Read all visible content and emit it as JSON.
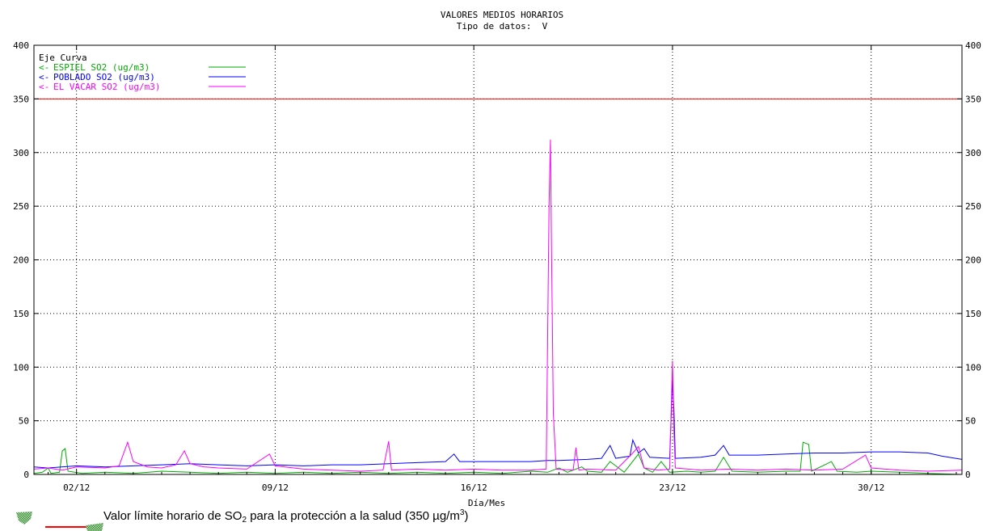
{
  "chart_data": {
    "type": "line",
    "title": "VALORES MEDIOS HORARIOS",
    "subtitle": "Tipo de datos:  V",
    "xlabel": "Día/Mes",
    "ylabel": "",
    "x_range_days": [
      0.5,
      33.2
    ],
    "ylim": [
      0,
      400
    ],
    "yticks": [
      0,
      50,
      100,
      150,
      200,
      250,
      300,
      350,
      400
    ],
    "xticks": [
      {
        "day": 2,
        "label": "02/12"
      },
      {
        "day": 9,
        "label": "09/12"
      },
      {
        "day": 16,
        "label": "16/12"
      },
      {
        "day": 23,
        "label": "23/12"
      },
      {
        "day": 30,
        "label": "30/12"
      }
    ],
    "grid": true,
    "legend_position": "top-left",
    "legend_header": "Eje Curva",
    "limit_line": {
      "value": 350,
      "color": "#ff0000"
    },
    "series": [
      {
        "name": "ESPIEL SO2  (ug/m3)",
        "axis": "<-",
        "color": "#00aa00",
        "points": [
          [
            0.5,
            1
          ],
          [
            0.8,
            2
          ],
          [
            1.0,
            6
          ],
          [
            1.1,
            1
          ],
          [
            1.4,
            2
          ],
          [
            1.5,
            22
          ],
          [
            1.6,
            24
          ],
          [
            1.7,
            3
          ],
          [
            2.2,
            1
          ],
          [
            3.0,
            2
          ],
          [
            4.0,
            1
          ],
          [
            5.0,
            3
          ],
          [
            6.0,
            2
          ],
          [
            7.0,
            1
          ],
          [
            8.0,
            2
          ],
          [
            9.0,
            1
          ],
          [
            10.0,
            2
          ],
          [
            11.0,
            1
          ],
          [
            12.0,
            2
          ],
          [
            13.0,
            1
          ],
          [
            14.0,
            2
          ],
          [
            15.0,
            1
          ],
          [
            16.0,
            2
          ],
          [
            17.0,
            1
          ],
          [
            18.0,
            3
          ],
          [
            18.6,
            2
          ],
          [
            19.0,
            6
          ],
          [
            19.3,
            2
          ],
          [
            19.8,
            7
          ],
          [
            20.0,
            3
          ],
          [
            20.5,
            2
          ],
          [
            20.8,
            12
          ],
          [
            21.0,
            8
          ],
          [
            21.3,
            2
          ],
          [
            21.8,
            19
          ],
          [
            22.0,
            6
          ],
          [
            22.3,
            2
          ],
          [
            22.6,
            12
          ],
          [
            22.9,
            2
          ],
          [
            23.5,
            3
          ],
          [
            24.0,
            2
          ],
          [
            24.5,
            3
          ],
          [
            24.8,
            16
          ],
          [
            25.1,
            3
          ],
          [
            26.0,
            2
          ],
          [
            27.0,
            3
          ],
          [
            27.5,
            3
          ],
          [
            27.6,
            30
          ],
          [
            27.8,
            28
          ],
          [
            27.9,
            3
          ],
          [
            28.6,
            12
          ],
          [
            28.8,
            3
          ],
          [
            29.5,
            2
          ],
          [
            30.0,
            3
          ],
          [
            31.0,
            2
          ],
          [
            32.0,
            1
          ],
          [
            33.2,
            0
          ]
        ]
      },
      {
        "name": "POBLADO SO2  (ug/m3)",
        "axis": "<-",
        "color": "#0000ff",
        "points": [
          [
            0.5,
            7
          ],
          [
            1.0,
            6
          ],
          [
            2.0,
            8
          ],
          [
            3.0,
            7
          ],
          [
            4.0,
            8
          ],
          [
            5.0,
            9
          ],
          [
            6.0,
            10
          ],
          [
            7.0,
            9
          ],
          [
            8.0,
            8
          ],
          [
            9.0,
            9
          ],
          [
            10.0,
            8
          ],
          [
            11.0,
            9
          ],
          [
            12.0,
            9
          ],
          [
            13.0,
            10
          ],
          [
            14.0,
            11
          ],
          [
            15.0,
            12
          ],
          [
            15.3,
            19
          ],
          [
            15.5,
            12
          ],
          [
            16.0,
            12
          ],
          [
            17.0,
            12
          ],
          [
            18.0,
            12
          ],
          [
            18.6,
            13
          ],
          [
            19.0,
            13
          ],
          [
            20.0,
            14
          ],
          [
            20.5,
            15
          ],
          [
            20.8,
            27
          ],
          [
            21.0,
            15
          ],
          [
            21.5,
            17
          ],
          [
            21.6,
            32
          ],
          [
            21.8,
            20
          ],
          [
            22.0,
            24
          ],
          [
            22.2,
            16
          ],
          [
            22.9,
            15
          ],
          [
            23.0,
            88
          ],
          [
            23.05,
            60
          ],
          [
            23.1,
            15
          ],
          [
            24.0,
            16
          ],
          [
            24.5,
            18
          ],
          [
            24.8,
            27
          ],
          [
            25.0,
            18
          ],
          [
            26.0,
            18
          ],
          [
            27.0,
            19
          ],
          [
            28.0,
            20
          ],
          [
            29.0,
            20
          ],
          [
            30.0,
            21
          ],
          [
            31.0,
            21
          ],
          [
            32.0,
            20
          ],
          [
            32.5,
            17
          ],
          [
            33.2,
            14
          ]
        ]
      },
      {
        "name": "EL VACAR SO2  (ug/m3)",
        "axis": "<-",
        "color": "#ff00ff",
        "points": [
          [
            0.5,
            5
          ],
          [
            1.0,
            6
          ],
          [
            1.5,
            4
          ],
          [
            2.0,
            7
          ],
          [
            3.0,
            6
          ],
          [
            3.5,
            8
          ],
          [
            3.8,
            30
          ],
          [
            4.0,
            12
          ],
          [
            4.5,
            7
          ],
          [
            5.0,
            6
          ],
          [
            5.5,
            9
          ],
          [
            5.8,
            22
          ],
          [
            6.0,
            10
          ],
          [
            6.5,
            7
          ],
          [
            7.0,
            6
          ],
          [
            8.0,
            5
          ],
          [
            8.8,
            19
          ],
          [
            9.0,
            8
          ],
          [
            10.0,
            5
          ],
          [
            11.0,
            4
          ],
          [
            12.0,
            3
          ],
          [
            12.8,
            4
          ],
          [
            13.0,
            31
          ],
          [
            13.1,
            4
          ],
          [
            14.0,
            5
          ],
          [
            15.0,
            4
          ],
          [
            16.0,
            5
          ],
          [
            17.0,
            4
          ],
          [
            18.0,
            4
          ],
          [
            18.55,
            5
          ],
          [
            18.65,
            250
          ],
          [
            18.7,
            312
          ],
          [
            18.75,
            180
          ],
          [
            18.8,
            57
          ],
          [
            18.9,
            5
          ],
          [
            19.5,
            4
          ],
          [
            19.6,
            25
          ],
          [
            19.7,
            4
          ],
          [
            20.0,
            5
          ],
          [
            21.0,
            4
          ],
          [
            21.6,
            20
          ],
          [
            21.8,
            26
          ],
          [
            22.0,
            6
          ],
          [
            22.5,
            4
          ],
          [
            22.9,
            5
          ],
          [
            23.0,
            106
          ],
          [
            23.05,
            40
          ],
          [
            23.1,
            6
          ],
          [
            24.0,
            4
          ],
          [
            25.0,
            5
          ],
          [
            26.0,
            4
          ],
          [
            27.0,
            5
          ],
          [
            28.0,
            4
          ],
          [
            29.0,
            5
          ],
          [
            29.8,
            18
          ],
          [
            30.0,
            6
          ],
          [
            31.0,
            4
          ],
          [
            32.0,
            3
          ],
          [
            33.2,
            4
          ]
        ]
      }
    ]
  },
  "footer": {
    "note_main": "Valor límite horario de SO",
    "note_sub": "2",
    "note_mid": " para la protección a la salud (350 µg/m",
    "note_sup": "3",
    "note_end": ")",
    "limit_color": "#ff0000"
  }
}
